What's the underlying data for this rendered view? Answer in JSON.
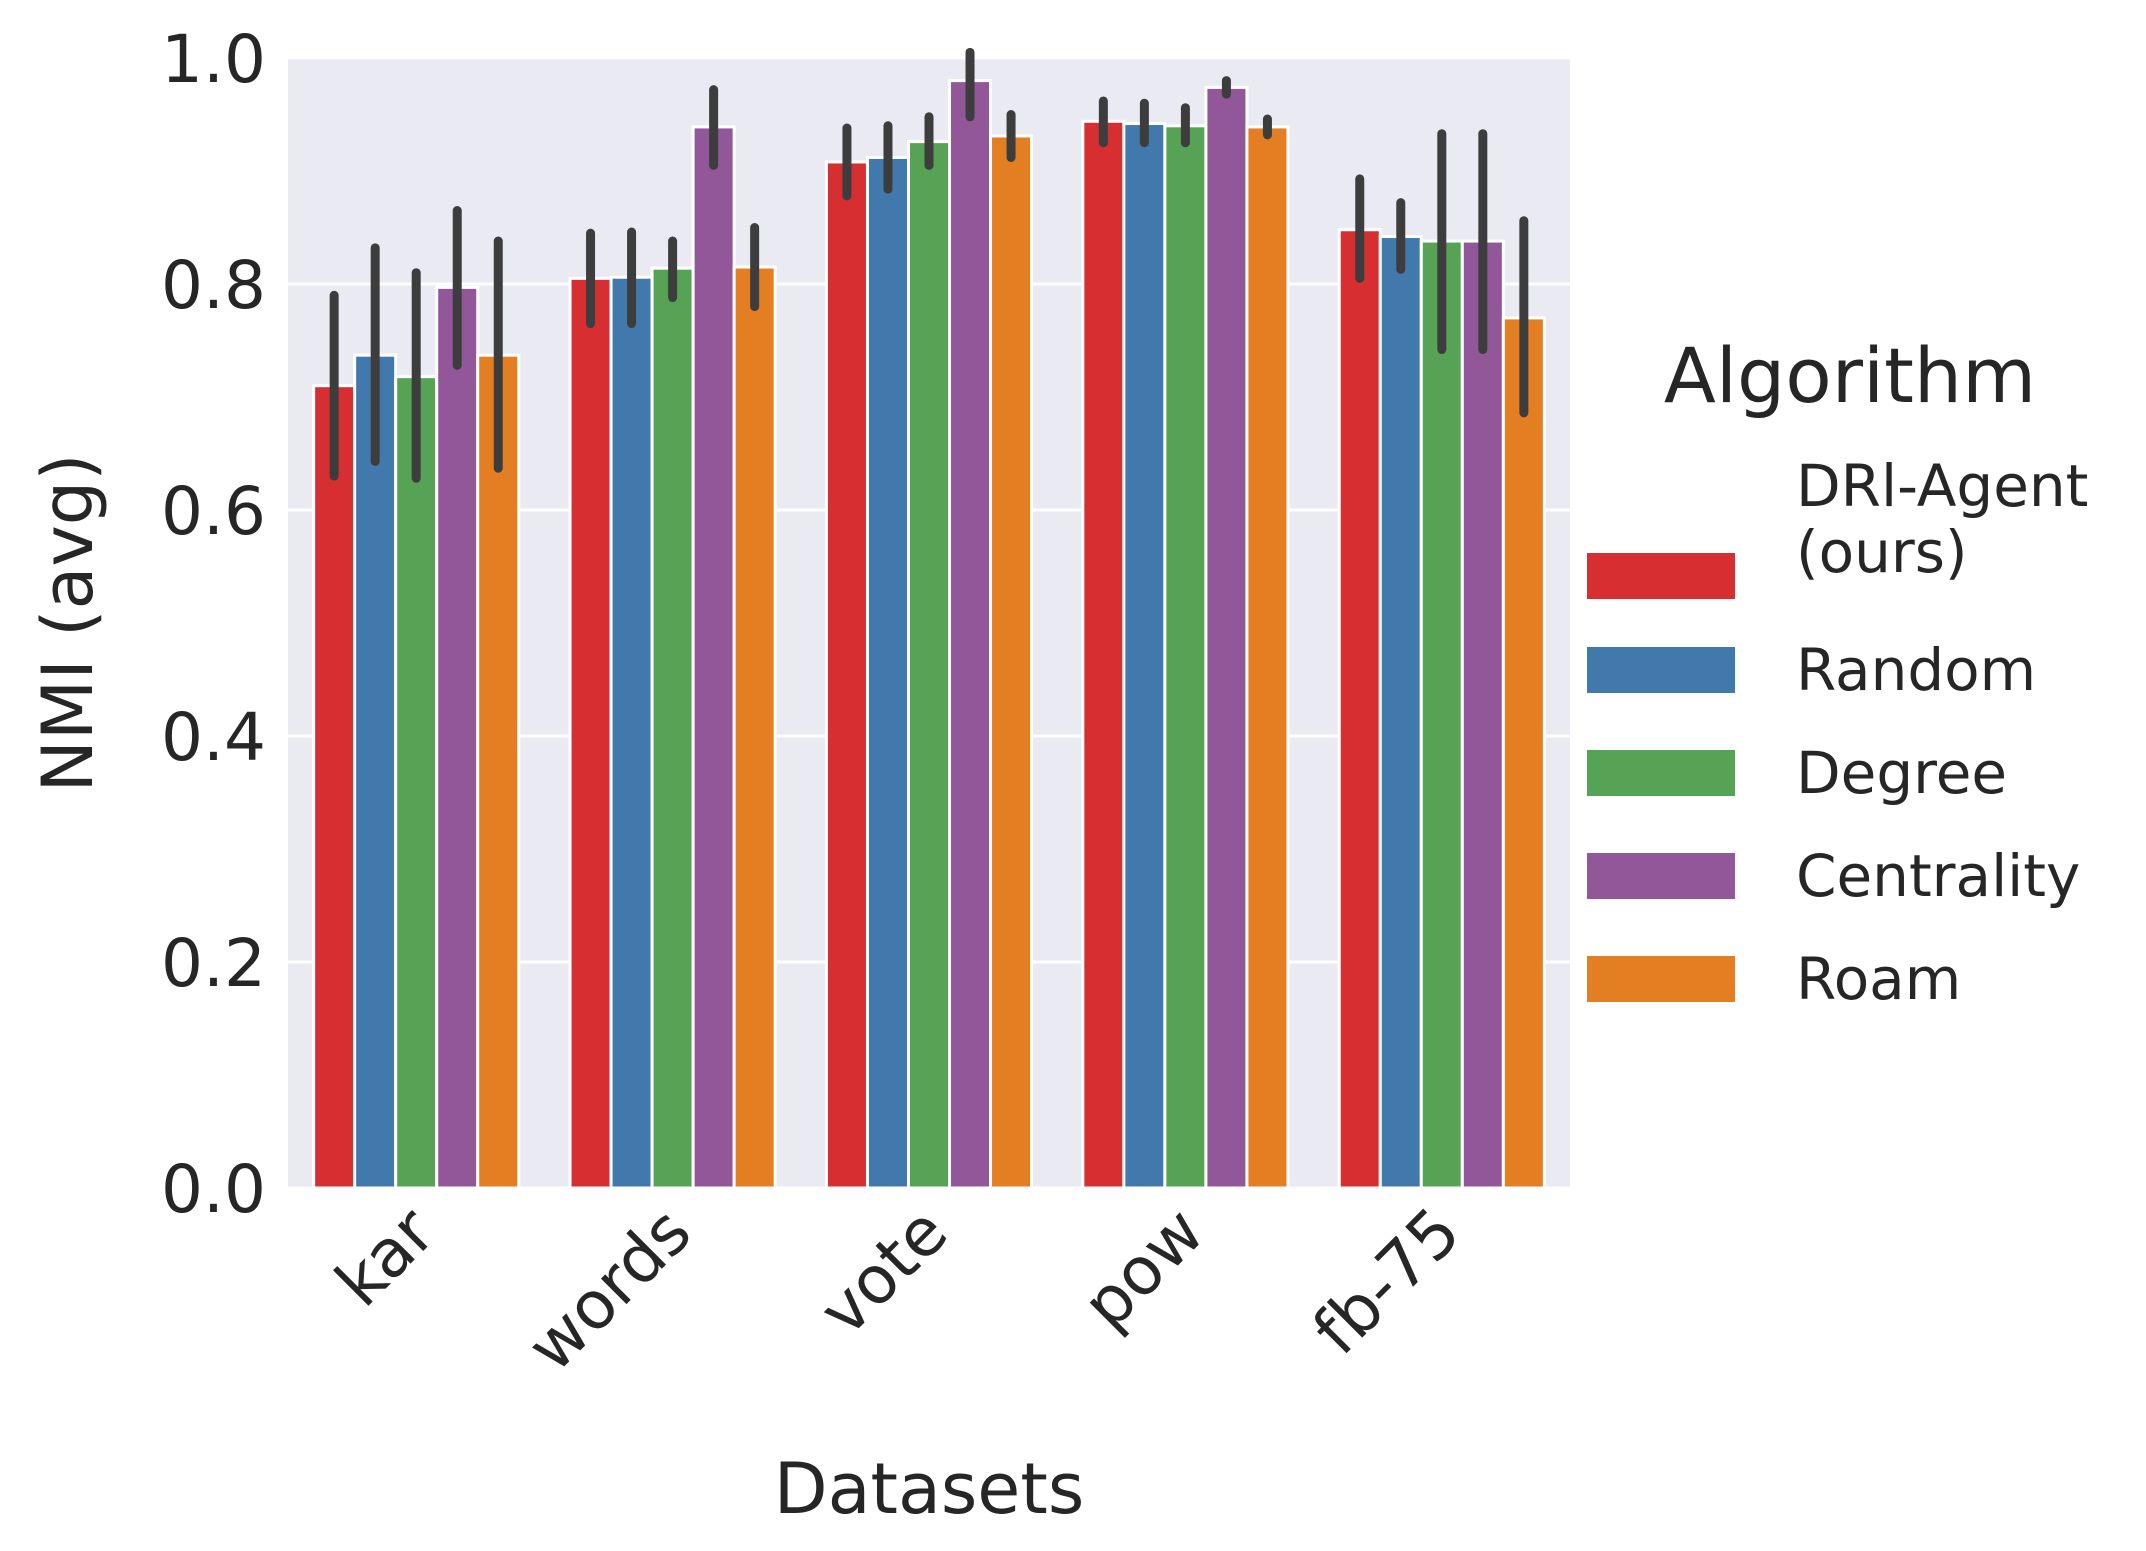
{
  "chart_data": {
    "type": "bar",
    "title": "",
    "xlabel": "Datasets",
    "ylabel": "NMI (avg)",
    "ylim": [
      0,
      1.0
    ],
    "yticks": [
      "0.0",
      "0.2",
      "0.4",
      "0.6",
      "0.8",
      "1.0"
    ],
    "grid": true,
    "categories": [
      "kar",
      "words",
      "vote",
      "pow",
      "fb-75"
    ],
    "legend": {
      "title": "Algorithm",
      "position": "right"
    },
    "series": [
      {
        "name": "DRl-Agent\n(ours)",
        "color": "#d62e31",
        "values": [
          0.71,
          0.805,
          0.908,
          0.944,
          0.848
        ],
        "err_low": [
          0.63,
          0.765,
          0.878,
          0.925,
          0.805
        ],
        "err_high": [
          0.79,
          0.845,
          0.938,
          0.962,
          0.893
        ]
      },
      {
        "name": "Random",
        "color": "#4279ad",
        "values": [
          0.737,
          0.806,
          0.912,
          0.942,
          0.842
        ],
        "err_low": [
          0.643,
          0.765,
          0.884,
          0.925,
          0.813
        ],
        "err_high": [
          0.832,
          0.846,
          0.94,
          0.96,
          0.872
        ]
      },
      {
        "name": "Degree",
        "color": "#56a355",
        "values": [
          0.718,
          0.814,
          0.926,
          0.94,
          0.838
        ],
        "err_low": [
          0.628,
          0.788,
          0.905,
          0.925,
          0.742
        ],
        "err_high": [
          0.81,
          0.838,
          0.948,
          0.956,
          0.933
        ]
      },
      {
        "name": "Centrality",
        "color": "#915799",
        "values": [
          0.797,
          0.939,
          0.98,
          0.974,
          0.838
        ],
        "err_low": [
          0.728,
          0.905,
          0.948,
          0.968,
          0.742
        ],
        "err_high": [
          0.865,
          0.972,
          1.005,
          0.98,
          0.933
        ]
      },
      {
        "name": "Roam",
        "color": "#e37e22",
        "values": [
          0.737,
          0.815,
          0.931,
          0.939,
          0.77
        ],
        "err_low": [
          0.637,
          0.78,
          0.912,
          0.932,
          0.686
        ],
        "err_high": [
          0.838,
          0.85,
          0.95,
          0.946,
          0.856
        ]
      }
    ]
  }
}
